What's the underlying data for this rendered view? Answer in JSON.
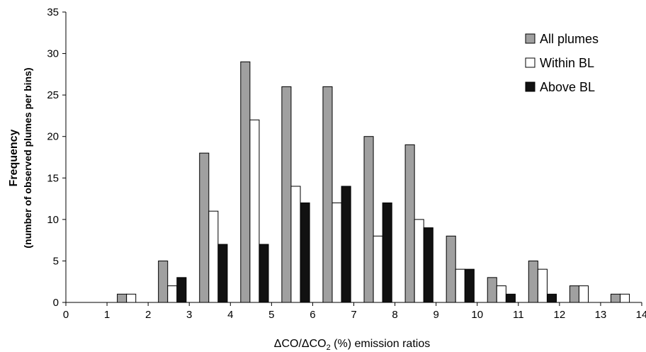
{
  "chart_data": {
    "type": "bar",
    "title": "",
    "xlabel_prefix": "ΔCO/ΔCO",
    "xlabel_sub": "2",
    "xlabel_suffix": " (%) emission ratios",
    "ylabel_line1": "Frequency",
    "ylabel_line2": "(number of observed plumes per bins)",
    "xlim": [
      0,
      14
    ],
    "ylim": [
      0,
      35
    ],
    "x_ticks": [
      "0",
      "1",
      "2",
      "3",
      "4",
      "5",
      "6",
      "7",
      "8",
      "9",
      "10",
      "11",
      "12",
      "13",
      "14"
    ],
    "y_ticks": [
      "0",
      "5",
      "10",
      "15",
      "20",
      "25",
      "30",
      "35"
    ],
    "grid": false,
    "legend_position": "top-right",
    "bin_starts": [
      1,
      2,
      3,
      4,
      5,
      6,
      7,
      8,
      9,
      10,
      11,
      12,
      13
    ],
    "series": [
      {
        "name": "All plumes",
        "color": "#a0a0a0",
        "values": [
          1,
          5,
          18,
          29,
          26,
          26,
          20,
          19,
          8,
          3,
          5,
          2,
          1
        ]
      },
      {
        "name": "Within BL",
        "color": "#ffffff",
        "values": [
          1,
          2,
          11,
          22,
          14,
          12,
          8,
          10,
          4,
          2,
          4,
          2,
          1
        ]
      },
      {
        "name": "Above BL",
        "color": "#111111",
        "values": [
          0,
          3,
          7,
          7,
          12,
          14,
          12,
          9,
          4,
          1,
          1,
          0,
          0
        ]
      }
    ]
  }
}
